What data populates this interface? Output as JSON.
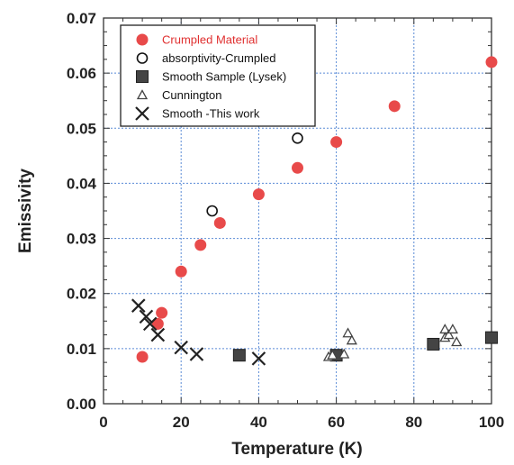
{
  "chart_data": {
    "type": "scatter",
    "xlabel": "Temperature (K)",
    "ylabel": "Emissivity",
    "xlim": [
      0,
      100
    ],
    "ylim": [
      0,
      0.07
    ],
    "xticks": [
      0,
      20,
      40,
      60,
      80,
      100
    ],
    "yticks": [
      0.0,
      0.01,
      0.02,
      0.03,
      0.04,
      0.05,
      0.06,
      0.07
    ],
    "xtick_labels": [
      "0",
      "20",
      "40",
      "60",
      "80",
      "100"
    ],
    "ytick_labels": [
      "0.00",
      "0.01",
      "0.02",
      "0.03",
      "0.04",
      "0.05",
      "0.06",
      "0.07"
    ],
    "grid": true,
    "legend_position": "top-left",
    "series": [
      {
        "name": "Crumpled Material",
        "marker": "filled-circle",
        "color": "#e84a4a",
        "points": [
          [
            10,
            0.0085
          ],
          [
            14,
            0.0145
          ],
          [
            15,
            0.0165
          ],
          [
            20,
            0.024
          ],
          [
            25,
            0.0288
          ],
          [
            30,
            0.0328
          ],
          [
            40,
            0.038
          ],
          [
            50,
            0.0428
          ],
          [
            60,
            0.0475
          ],
          [
            75,
            0.054
          ],
          [
            100,
            0.062
          ]
        ]
      },
      {
        "name": "absorptivity-Crumpled",
        "marker": "open-circle",
        "color": "#111111",
        "points": [
          [
            28,
            0.035
          ],
          [
            50,
            0.0482
          ]
        ]
      },
      {
        "name": "Smooth  Sample (Lysek)",
        "marker": "filled-square",
        "color": "#444444",
        "points": [
          [
            35,
            0.0088
          ],
          [
            60,
            0.0088
          ],
          [
            85,
            0.0108
          ],
          [
            100,
            0.012
          ]
        ]
      },
      {
        "name": "Cunnington",
        "marker": "open-triangle",
        "color": "#444444",
        "points": [
          [
            58,
            0.0085
          ],
          [
            59,
            0.0088
          ],
          [
            62,
            0.009
          ],
          [
            63,
            0.0128
          ],
          [
            64,
            0.0115
          ],
          [
            88,
            0.0135
          ],
          [
            88,
            0.012
          ],
          [
            89,
            0.0125
          ],
          [
            90,
            0.0135
          ],
          [
            91,
            0.0112
          ]
        ]
      },
      {
        "name": "Smooth -This work",
        "marker": "cross",
        "color": "#222222",
        "points": [
          [
            9,
            0.0178
          ],
          [
            11,
            0.0158
          ],
          [
            12,
            0.0145
          ],
          [
            14,
            0.0125
          ],
          [
            20,
            0.0102
          ],
          [
            24,
            0.009
          ],
          [
            40,
            0.0082
          ]
        ]
      }
    ]
  }
}
